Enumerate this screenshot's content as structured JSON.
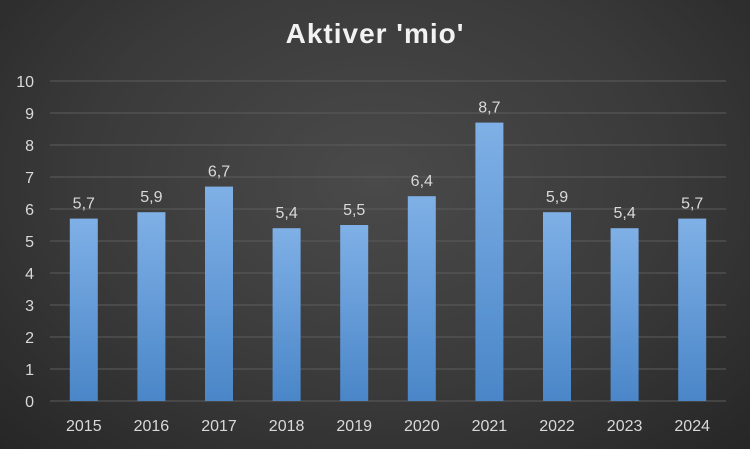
{
  "chart_data": {
    "type": "bar",
    "title": "Aktiver 'mio'",
    "xlabel": "",
    "ylabel": "",
    "categories": [
      "2015",
      "2016",
      "2017",
      "2018",
      "2019",
      "2020",
      "2021",
      "2022",
      "2023",
      "2024"
    ],
    "values": [
      5.7,
      5.9,
      6.7,
      5.4,
      5.5,
      6.4,
      8.7,
      5.9,
      5.4,
      5.7
    ],
    "data_labels": [
      "5,7",
      "5,9",
      "6,7",
      "5,4",
      "5,5",
      "6,4",
      "8,7",
      "5,9",
      "5,4",
      "5,7"
    ],
    "ylim": [
      0,
      10
    ],
    "yticks": [
      "0",
      "1",
      "2",
      "3",
      "4",
      "5",
      "6",
      "7",
      "8",
      "9",
      "10"
    ],
    "grid": true,
    "legend": "none",
    "colors": {
      "bar_top": "#7fb0e6",
      "bar_bottom": "#4a86c8",
      "background": "#3a3a3a",
      "text": "#d9d9d9"
    }
  }
}
